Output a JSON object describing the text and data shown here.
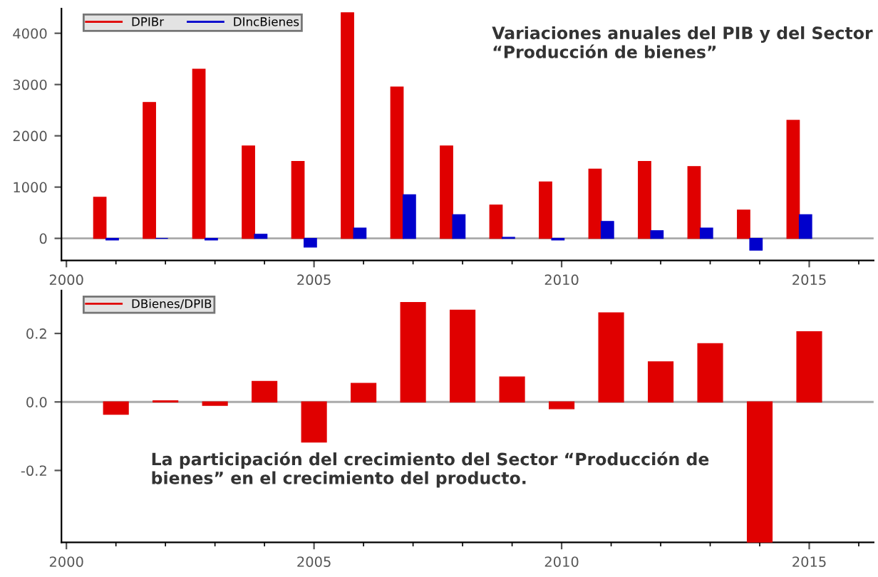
{
  "chart_data": [
    {
      "type": "bar",
      "x": [
        2001,
        2002,
        2003,
        2004,
        2005,
        2006,
        2007,
        2008,
        2009,
        2010,
        2011,
        2012,
        2013,
        2014,
        2015
      ],
      "series": [
        {
          "name": "DPIBr",
          "color": "#e00000",
          "values": [
            800,
            2650,
            3300,
            1800,
            1500,
            4400,
            2950,
            1800,
            650,
            1100,
            1350,
            1500,
            1400,
            550,
            2300
          ]
        },
        {
          "name": "DIncBienes",
          "color": "#0000cc",
          "values": [
            -30,
            0,
            -30,
            80,
            -170,
            200,
            850,
            460,
            20,
            -30,
            330,
            150,
            200,
            -230,
            460
          ]
        }
      ],
      "xlim": [
        1999.9,
        2016.3
      ],
      "xticks": [
        2000,
        2005,
        2010,
        2015
      ],
      "ylim": [
        -430,
        4480
      ],
      "yticks": [
        0,
        1000,
        2000,
        3000,
        4000
      ],
      "ref_lines": [
        {
          "axis": "y",
          "value": 0,
          "color": "#aaaaaa"
        }
      ],
      "legend": "top left",
      "annotations": [
        "Variaciones anuales del PIB y del Sector “Producción de bienes”"
      ]
    },
    {
      "type": "bar",
      "x": [
        2001,
        2002,
        2003,
        2004,
        2005,
        2006,
        2007,
        2008,
        2009,
        2010,
        2011,
        2012,
        2013,
        2014,
        2015
      ],
      "series": [
        {
          "name": "DBienes/DPIB",
          "color": "#e00000",
          "values": [
            -0.036,
            0.003,
            -0.01,
            0.06,
            -0.117,
            0.054,
            0.29,
            0.268,
            0.073,
            -0.02,
            0.26,
            0.117,
            0.17,
            -0.41,
            0.205
          ]
        }
      ],
      "xlim": [
        1999.9,
        2016.3
      ],
      "xticks": [
        2000,
        2005,
        2010,
        2015
      ],
      "ylim": [
        -0.41,
        0.325
      ],
      "yticks": [
        {
          "value": -0.2,
          "label": "-0.2"
        },
        {
          "value": 0.0,
          "label": "0.0"
        },
        {
          "value": 0.2,
          "label": "0.2"
        }
      ],
      "ref_lines": [
        {
          "axis": "y",
          "value": 0,
          "color": "#aaaaaa"
        }
      ],
      "legend": "top left",
      "annotations": [
        "La participación del crecimiento del Sector “Producción de bienes” en el crecimiento del producto."
      ]
    }
  ]
}
